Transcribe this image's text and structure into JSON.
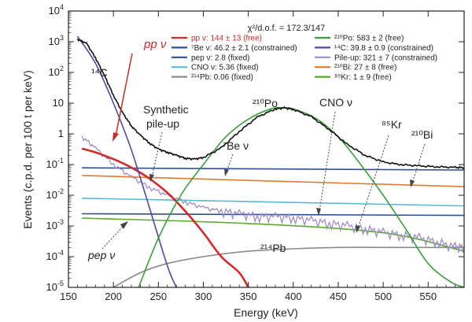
{
  "chart_data": {
    "type": "line",
    "title": "",
    "xlabel": "Energy (keV)",
    "ylabel": "Events (c.p.d. per 100 t per keV)",
    "xlim": [
      150,
      590
    ],
    "ylim": [
      1e-05,
      10000.0
    ],
    "y_scale": "log",
    "x_ticks": [
      150,
      200,
      250,
      300,
      350,
      400,
      450,
      500,
      550
    ],
    "y_tick_labels": [
      "10^-5",
      "10^-4",
      "10^-3",
      "10^-2",
      "10^-1",
      "1",
      "10",
      "10^2",
      "10^3",
      "10^4"
    ],
    "fit_statistic": "χ²/d.o.f. = 172.3/147",
    "legend": [
      {
        "label": "pp ν: 144 ± 13 (free)",
        "color": "#d42a2a"
      },
      {
        "label": "⁷Be ν: 46.2 ± 2.1 (constrained)",
        "color": "#2b4f9e"
      },
      {
        "label": "pep ν: 2.8 (fixed)",
        "color": "#2e4f8c"
      },
      {
        "label": "CNO ν: 5.36 (fixed)",
        "color": "#58b8d8"
      },
      {
        "label": "²¹⁴Pb: 0.06 (fixed)",
        "color": "#8a8a8a"
      },
      {
        "label": "²¹⁰Po: 583 ± 2 (free)",
        "color": "#3aa03a"
      },
      {
        "label": "¹⁴C: 39.8 ± 0.9 (constrained)",
        "color": "#4a4aa8"
      },
      {
        "label": "Pile-up: 321 ± 7 (constrained)",
        "color": "#a08cc8"
      },
      {
        "label": "²¹⁰Bi: 27 ± 8 (free)",
        "color": "#e07a30"
      },
      {
        "label": "⁸⁵Kr: 1 ± 9 (free)",
        "color": "#5aaa2a"
      }
    ],
    "annotations": [
      "pp ν",
      "¹⁴C",
      "Synthetic",
      "pile-up",
      "²¹⁰Po",
      "CNO ν",
      "⁸⁵Kr",
      "⁷Be ν",
      "²¹⁰Bi",
      "pep ν",
      "²¹⁴Pb"
    ],
    "series": [
      {
        "key": "total",
        "color": "#111111",
        "x": [
          160,
          170,
          180,
          190,
          200,
          210,
          220,
          230,
          240,
          250,
          260,
          270,
          280,
          290,
          300,
          320,
          340,
          360,
          380,
          390,
          400,
          420,
          440,
          460,
          480,
          500,
          520,
          540,
          560,
          580,
          590
        ],
        "y": [
          1200,
          900,
          300,
          80,
          18,
          5,
          1.8,
          0.9,
          0.5,
          0.32,
          0.25,
          0.2,
          0.16,
          0.15,
          0.17,
          0.35,
          1.2,
          3.5,
          6.5,
          7,
          6.3,
          3.6,
          1.4,
          0.45,
          0.2,
          0.12,
          0.1,
          0.09,
          0.085,
          0.08,
          0.08
        ]
      },
      {
        "key": "c14",
        "color": "#4a4aa8",
        "x": [
          160,
          180,
          200,
          220,
          240,
          260,
          270
        ],
        "y": [
          1500,
          200,
          10,
          0.3,
          0.004,
          5e-05,
          1e-05
        ]
      },
      {
        "key": "po210",
        "color": "#3aa03a",
        "x": [
          228,
          250,
          275,
          300,
          325,
          350,
          375,
          390,
          400,
          425,
          450,
          475,
          500,
          525,
          550,
          575,
          590
        ],
        "y": [
          1e-05,
          0.0004,
          0.01,
          0.1,
          0.8,
          3,
          6.5,
          7,
          6.5,
          3.2,
          0.8,
          0.1,
          0.01,
          0.0008,
          6e-05,
          1.5e-05,
          1e-05
        ]
      },
      {
        "key": "pp",
        "color": "#d42a2a",
        "x": [
          165,
          180,
          200,
          220,
          240,
          260,
          280,
          300,
          320,
          340,
          350
        ],
        "y": [
          0.33,
          0.25,
          0.15,
          0.08,
          0.035,
          0.012,
          0.003,
          0.0006,
          0.0001,
          3e-05,
          1e-05
        ]
      },
      {
        "key": "be7",
        "color": "#2b4f9e",
        "x": [
          165,
          590
        ],
        "y": [
          0.078,
          0.066
        ]
      },
      {
        "key": "bi210",
        "color": "#e07a30",
        "x": [
          165,
          590
        ],
        "y": [
          0.044,
          0.019
        ]
      },
      {
        "key": "cno",
        "color": "#58b8d8",
        "x": [
          165,
          590
        ],
        "y": [
          0.008,
          0.0045
        ]
      },
      {
        "key": "pep",
        "color": "#2e4f8c",
        "x": [
          165,
          590
        ],
        "y": [
          0.0025,
          0.0022
        ]
      },
      {
        "key": "kr85",
        "color": "#5aaa2a",
        "x": [
          165,
          350,
          500,
          590
        ],
        "y": [
          0.0018,
          0.0012,
          0.0006,
          0.00015
        ]
      },
      {
        "key": "pb214",
        "color": "#8a8a8a",
        "x": [
          200,
          230,
          260,
          300,
          350,
          400,
          450,
          500,
          550,
          590
        ],
        "y": [
          1e-05,
          3e-05,
          6e-05,
          0.0001,
          0.00015,
          0.00018,
          0.0002,
          0.0002,
          0.0002,
          0.0002
        ]
      },
      {
        "key": "pileup",
        "color": "#a08cc8",
        "x": [
          165,
          180,
          200,
          220,
          240,
          260,
          280,
          300,
          320,
          340,
          360,
          380,
          400,
          420,
          440,
          460,
          480,
          500,
          520,
          540,
          560,
          580,
          590
        ],
        "y": [
          0.8,
          0.35,
          0.1,
          0.04,
          0.018,
          0.01,
          0.006,
          0.004,
          0.003,
          0.0025,
          0.002,
          0.002,
          0.0018,
          0.0015,
          0.0012,
          0.001,
          0.0008,
          0.0006,
          0.0005,
          0.0004,
          0.0003,
          0.0002,
          0.0002
        ]
      }
    ]
  }
}
